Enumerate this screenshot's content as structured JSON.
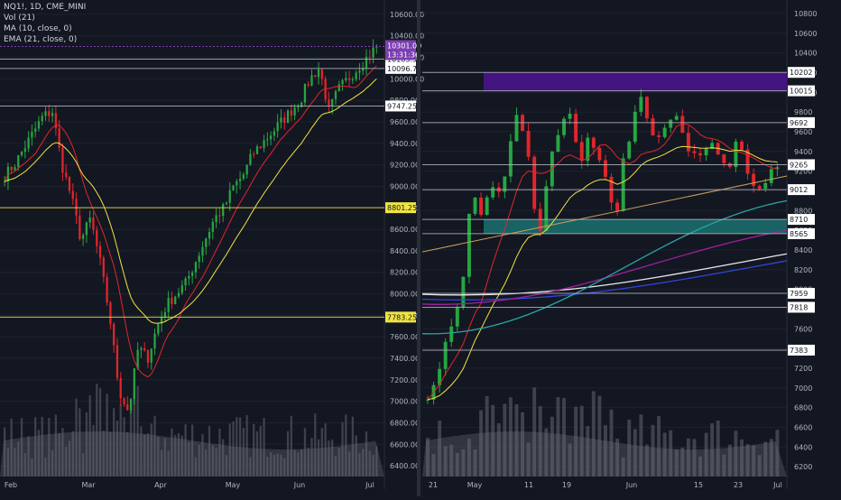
{
  "chart_data": [
    {
      "type": "candlestick",
      "symbol": "NQ1!, 1D, CME_MINI",
      "indicators": [
        "Vol (21)",
        "MA (10, close, 0)",
        "EMA (21, close, 0)"
      ],
      "price_ticks": [
        6400,
        6600,
        6800,
        7000,
        7200,
        7400,
        7600,
        7800,
        8000,
        8200,
        8400,
        8600,
        8800,
        9000,
        9200,
        9400,
        9600,
        9800,
        10000,
        10200,
        10400,
        10600
      ],
      "price_tick_labels": [
        "6400.00",
        "6600.00",
        "6800.00",
        "7000.00",
        "7200.00",
        "7400.00",
        "7600.00",
        "7800.00",
        "8000.00",
        "8200.00",
        "8400.00",
        "8600.00",
        "8800.00",
        "9000.00",
        "9200.00",
        "9400.00",
        "9600.00",
        "9800.00",
        "10000.00",
        "10200.00",
        "10400.00",
        "10600.00"
      ],
      "ylim": [
        6300,
        10700
      ],
      "x_labels": [
        "Feb",
        "Mar",
        "Apr",
        "May",
        "Jun",
        "Jul"
      ],
      "levels": [
        {
          "value": 10183.5,
          "label": "10183.50",
          "color": "#b2b5be",
          "style": "solid"
        },
        {
          "value": 10096.75,
          "label": "10096.75",
          "color": "#b2b5be",
          "style": "solid"
        },
        {
          "value": 9747.25,
          "label": "9747.25",
          "color": "#b2b5be",
          "style": "solid"
        },
        {
          "value": 8801.25,
          "label": "8801.25",
          "color": "#f0e442",
          "style": "solid"
        },
        {
          "value": 7783.25,
          "label": "7783.25",
          "color": "#f0e442",
          "style": "solid"
        }
      ],
      "last_price": {
        "value": 10301.0,
        "label": "10301.00",
        "countdown": "13:31:36",
        "color": "#7b3fb0"
      },
      "close_path": [
        9100,
        9200,
        9350,
        9500,
        9650,
        9700,
        9200,
        8900,
        8500,
        8700,
        8300,
        7800,
        7100,
        6900,
        7500,
        7400,
        7700,
        7900,
        8000,
        8100,
        8300,
        8500,
        8700,
        8800,
        9000,
        9100,
        9300,
        9400,
        9500,
        9600,
        9700,
        9800,
        10000,
        10100,
        9700,
        9900,
        10000,
        10100,
        10200,
        10301
      ]
    },
    {
      "type": "candlestick",
      "price_ticks": [
        6200,
        6400,
        6600,
        6800,
        7000,
        7200,
        7400,
        7600,
        7800,
        8000,
        8200,
        8400,
        8600,
        8800,
        9000,
        9200,
        9400,
        9600,
        9800,
        10000,
        10200,
        10400,
        10600,
        10800
      ],
      "price_tick_labels": [
        "6200",
        "6400",
        "6600",
        "6800",
        "7000",
        "7200",
        "7400",
        "7600",
        "7800",
        "8000",
        "8200",
        "8400",
        "8600",
        "8800",
        "9000",
        "9200",
        "9400",
        "9600",
        "9800",
        "10000",
        "10200",
        "10400",
        "10600",
        "10800"
      ],
      "ylim": [
        6100,
        10900
      ],
      "x_labels": [
        "21",
        "May",
        "11",
        "19",
        "Jun",
        "15",
        "23",
        "Jul"
      ],
      "levels": [
        {
          "value": 10202,
          "label": "10202"
        },
        {
          "value": 10015,
          "label": "10015"
        },
        {
          "value": 9692,
          "label": "9692"
        },
        {
          "value": 9265,
          "label": "9265"
        },
        {
          "value": 9012,
          "label": "9012"
        },
        {
          "value": 8710,
          "label": "8710"
        },
        {
          "value": 8565,
          "label": "8565"
        },
        {
          "value": 7959,
          "label": "7959"
        },
        {
          "value": 7818,
          "label": "7818"
        },
        {
          "value": 7383,
          "label": "7383"
        }
      ],
      "zones": [
        {
          "from": 10015,
          "to": 10202,
          "color": "#4a148c"
        },
        {
          "from": 8565,
          "to": 8710,
          "color": "#1b6b6b"
        }
      ],
      "close_path": [
        6900,
        7000,
        7300,
        7500,
        7700,
        7900,
        8700,
        8900,
        8800,
        9000,
        9100,
        9000,
        9300,
        9800,
        9600,
        9300,
        8700,
        8600,
        9300,
        9500,
        9700,
        9800,
        9500,
        9300,
        9600,
        9400,
        9200,
        9000,
        8700,
        9300,
        9500,
        9800,
        10000,
        9600,
        9500,
        9600,
        9700,
        9800,
        9600,
        9400,
        9400,
        9300,
        9500,
        9400,
        9300,
        9250,
        9600,
        9400,
        9100,
        9000,
        9100,
        9200,
        9250
      ]
    }
  ]
}
